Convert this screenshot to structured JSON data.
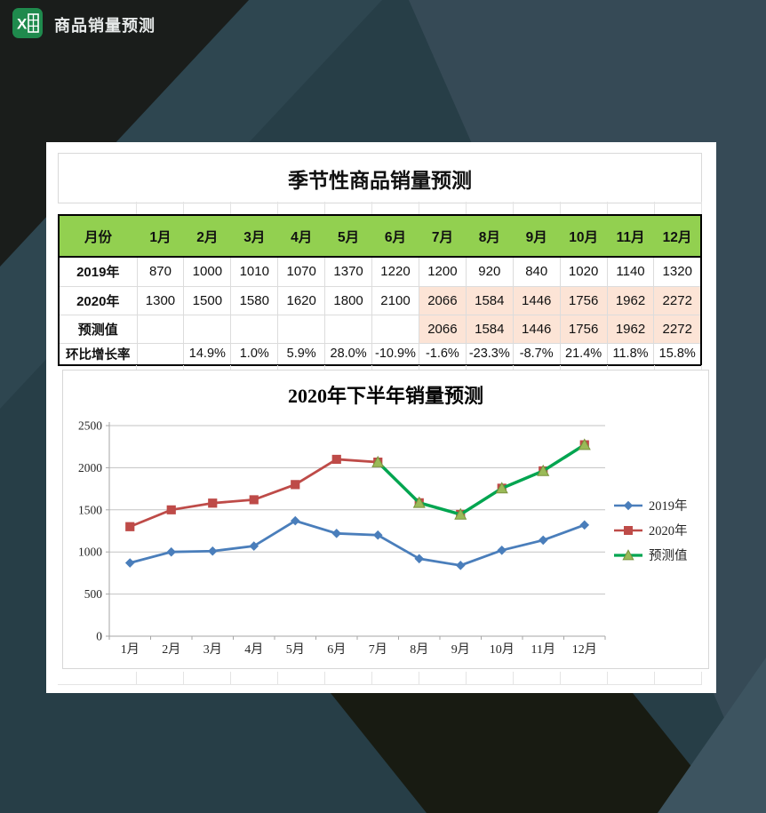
{
  "header": {
    "app_title": "商品销量预测",
    "icon": "excel-icon",
    "icon_color": "#1F8A4D"
  },
  "table": {
    "title": "季节性商品销量预测",
    "header_row": {
      "label": "月份",
      "months": [
        "1月",
        "2月",
        "3月",
        "4月",
        "5月",
        "6月",
        "7月",
        "8月",
        "9月",
        "10月",
        "11月",
        "12月"
      ]
    },
    "rows": [
      {
        "label": "2019年",
        "values": [
          "870",
          "1000",
          "1010",
          "1070",
          "1370",
          "1220",
          "1200",
          "920",
          "840",
          "1020",
          "1140",
          "1320"
        ],
        "highlight_from": null
      },
      {
        "label": "2020年",
        "values": [
          "1300",
          "1500",
          "1580",
          "1620",
          "1800",
          "2100",
          "2066",
          "1584",
          "1446",
          "1756",
          "1962",
          "2272"
        ],
        "highlight_from": 6
      },
      {
        "label": "预测值",
        "values": [
          "",
          "",
          "",
          "",
          "",
          "",
          "2066",
          "1584",
          "1446",
          "1756",
          "1962",
          "2272"
        ],
        "highlight_from": 6
      },
      {
        "label": "环比增长率",
        "values": [
          "",
          "14.9%",
          "1.0%",
          "5.9%",
          "28.0%",
          "-10.9%",
          "-1.6%",
          "-23.3%",
          "-8.7%",
          "21.4%",
          "11.8%",
          "15.8%"
        ],
        "highlight_from": null
      }
    ],
    "colors": {
      "header_bg": "#92D050",
      "highlight_bg": "#FCE4D6",
      "outer_border": "#000000",
      "inner_border": "#DCDCDC"
    }
  },
  "chart_data": {
    "type": "line",
    "title": "2020年下半年销量预测",
    "categories": [
      "1月",
      "2月",
      "3月",
      "4月",
      "5月",
      "6月",
      "7月",
      "8月",
      "9月",
      "10月",
      "11月",
      "12月"
    ],
    "series": [
      {
        "name": "2019年",
        "color": "#4A7EBB",
        "marker": "diamond",
        "marker_fill": "#4A7EBB",
        "values": [
          870,
          1000,
          1010,
          1070,
          1370,
          1220,
          1200,
          920,
          840,
          1020,
          1140,
          1320
        ]
      },
      {
        "name": "2020年",
        "color": "#BE4B48",
        "marker": "square",
        "marker_fill": "#BE4B48",
        "values": [
          1300,
          1500,
          1580,
          1620,
          1800,
          2100,
          2066,
          1584,
          1446,
          1756,
          1962,
          2272
        ]
      },
      {
        "name": "预测值",
        "color": "#00A550",
        "marker": "triangle",
        "marker_fill": "#9ABA58",
        "values": [
          null,
          null,
          null,
          null,
          null,
          null,
          2066,
          1584,
          1446,
          1756,
          1962,
          2272
        ]
      }
    ],
    "ylim": [
      0,
      2500
    ],
    "yticks": [
      0,
      500,
      1000,
      1500,
      2000,
      2500
    ],
    "legend_position": "right",
    "grid": true,
    "grid_color": "#C3C3C3",
    "axis_color": "#A6A6A6"
  }
}
